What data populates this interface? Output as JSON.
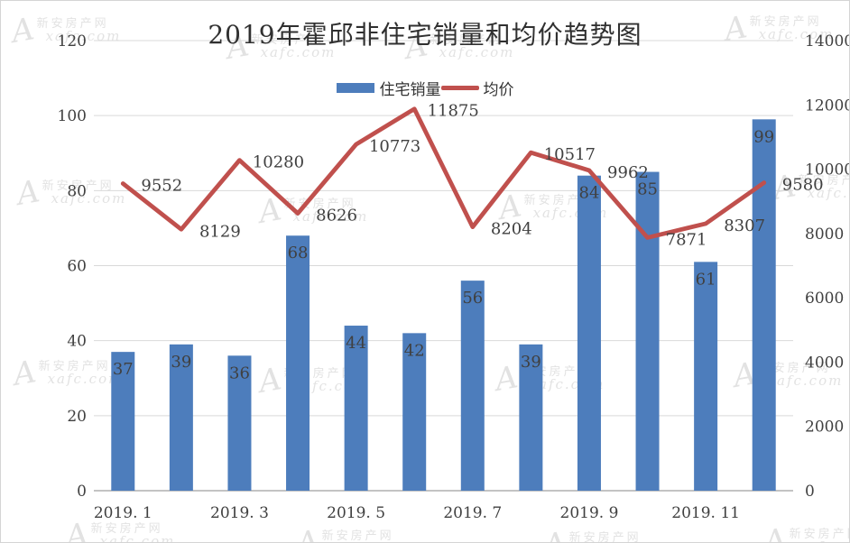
{
  "page": {
    "background": "#ffffff",
    "border_color": "#d4d4d4"
  },
  "chart_data": {
    "type": "combo-bar-line",
    "title": "2019年霍邱非住宅销量和均价趋势图",
    "categories": [
      "2019.1",
      "2019.2",
      "2019.3",
      "2019.4",
      "2019.5",
      "2019.6",
      "2019.7",
      "2019.8",
      "2019.9",
      "2019.10",
      "2019.11",
      "2019.12"
    ],
    "x_tick_labels": [
      "2019. 1",
      "2019. 3",
      "2019. 5",
      "2019. 7",
      "2019. 9",
      "2019. 11"
    ],
    "series": [
      {
        "name": "住宅销量",
        "type": "bar",
        "axis": "left",
        "color": "#4d7dbc",
        "values": [
          37,
          39,
          36,
          68,
          44,
          42,
          56,
          39,
          84,
          85,
          61,
          99
        ]
      },
      {
        "name": "均价",
        "type": "line",
        "axis": "right",
        "color": "#c0504d",
        "values": [
          9552,
          8129,
          10280,
          8626,
          10773,
          11875,
          8204,
          10517,
          9962,
          7871,
          8307,
          9580
        ]
      }
    ],
    "left_axis": {
      "min": 0,
      "max": 120,
      "step": 20,
      "tick_labels": [
        "0",
        "20",
        "40",
        "60",
        "80",
        "100",
        "120"
      ]
    },
    "right_axis": {
      "min": 0,
      "max": 14000,
      "step": 2000,
      "tick_labels": [
        "0",
        "2000",
        "4000",
        "6000",
        "8000",
        "10000",
        "12000",
        "14000"
      ]
    },
    "grid": "horizontal",
    "legend_position": "top-center",
    "data_labels": true
  },
  "watermark": {
    "logo": "A",
    "line1": "新安房产网",
    "line2": "xafc.com"
  },
  "colors": {
    "bar": "#4d7dbc",
    "line": "#c0504d",
    "grid": "#d9d9d9",
    "axis_line": "#c3c3c3",
    "label_text": "#404040",
    "title_text": "#303030",
    "watermark": "#cbcbcb"
  }
}
